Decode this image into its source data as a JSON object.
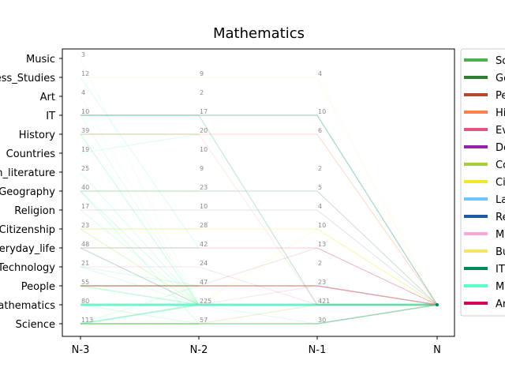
{
  "chart_data": {
    "type": "line",
    "title": "Mathematics",
    "x": [
      "N-3",
      "N-2",
      "N-1",
      "N"
    ],
    "y_categories": [
      "Science",
      "Mathematics",
      "People",
      "Technology",
      "Everyday_life",
      "Citizenship",
      "Religion",
      "Geography",
      "Foreign_literature",
      "Countries",
      "History",
      "IT",
      "Art",
      "Business_Studies",
      "Music"
    ],
    "counts": [
      {
        "column": "N-3",
        "values": {
          "Music": 3,
          "Business_Studies": 12,
          "Art": 4,
          "IT": 10,
          "History": 39,
          "Countries": 19,
          "Foreign_literature": 25,
          "Geography": 40,
          "Religion": 17,
          "Citizenship": 23,
          "Everyday_life": 48,
          "Technology": 21,
          "People": 55,
          "Mathematics": 80,
          "Science": 113
        }
      },
      {
        "column": "N-2",
        "values": {
          "Business_Studies": 9,
          "Art": 2,
          "IT": 17,
          "History": 20,
          "Countries": 10,
          "Foreign_literature": 9,
          "Geography": 23,
          "Religion": 10,
          "Citizenship": 28,
          "Everyday_life": 42,
          "Technology": 24,
          "People": 47,
          "Mathematics": 225,
          "Science": 57
        }
      },
      {
        "column": "N-1",
        "values": {
          "Business_Studies": 4,
          "IT": 10,
          "History": 6,
          "Foreign_literature": 2,
          "Geography": 5,
          "Religion": 4,
          "Citizenship": 10,
          "Everyday_life": 13,
          "Technology": 2,
          "People": 23,
          "Mathematics": 421,
          "Science": 30
        }
      }
    ],
    "target": {
      "column": "N",
      "category": "Mathematics"
    },
    "legend": {
      "placement": "outside-right",
      "entries": [
        {
          "label": "So",
          "color": "#4caf50"
        },
        {
          "label": "Ge",
          "color": "#2e7d32"
        },
        {
          "label": "Pe",
          "color": "#b5472c"
        },
        {
          "label": "Hi",
          "color": "#ff7f50"
        },
        {
          "label": "Ev",
          "color": "#e05584"
        },
        {
          "label": "De",
          "color": "#8e24aa"
        },
        {
          "label": "Co",
          "color": "#a4cd3c"
        },
        {
          "label": "Ci",
          "color": "#f5e62d"
        },
        {
          "label": "La",
          "color": "#6ec6ff"
        },
        {
          "label": "Re",
          "color": "#1e5aa8"
        },
        {
          "label": "M",
          "color": "#f7a8d8"
        },
        {
          "label": "Bu",
          "color": "#f7e36a"
        },
        {
          "label": "IT",
          "color": "#00875a"
        },
        {
          "label": "M",
          "color": "#5cffc8"
        },
        {
          "label": "Ar",
          "color": "#d6005f"
        }
      ]
    },
    "flows": [
      {
        "path": [
          "Science",
          "Mathematics"
        ],
        "color": "#7cf7b0",
        "w": 2,
        "o": 0.55
      },
      {
        "path": [
          "Science",
          "Science"
        ],
        "color": "#7cf7b0",
        "w": 1.5,
        "o": 0.45
      },
      {
        "path": [
          "Mathematics",
          "Mathematics"
        ],
        "color": "#5cffc8",
        "w": 2.5,
        "o": 0.85
      },
      {
        "path": [
          "People",
          "Mathematics"
        ],
        "color": "#7cf7b0",
        "w": 1.5,
        "o": 0.45
      },
      {
        "path": [
          "Everyday_life",
          "Everyday_life"
        ],
        "color": "#7cf7b0",
        "w": 1.2,
        "o": 0.35
      },
      {
        "path": [
          "Everyday_life",
          "Mathematics"
        ],
        "color": "#7cf7b0",
        "w": 1.2,
        "o": 0.35
      },
      {
        "path": [
          "History",
          "History"
        ],
        "color": "#7cf7b0",
        "w": 1.2,
        "o": 0.35
      },
      {
        "path": [
          "History",
          "Mathematics"
        ],
        "color": "#7cf7b0",
        "w": 1.2,
        "o": 0.35
      },
      {
        "path": [
          "Geography",
          "Geography"
        ],
        "color": "#7cf7b0",
        "w": 1,
        "o": 0.3
      },
      {
        "path": [
          "Geography",
          "Science"
        ],
        "color": "#7cf7b0",
        "w": 1,
        "o": 0.3
      },
      {
        "path": [
          "Citizenship",
          "Citizenship"
        ],
        "color": "#7cf7b0",
        "w": 1,
        "o": 0.3
      },
      {
        "path": [
          "Citizenship",
          "Mathematics"
        ],
        "color": "#7cf7b0",
        "w": 1,
        "o": 0.3
      },
      {
        "path": [
          "Technology",
          "People"
        ],
        "color": "#7cf7b0",
        "w": 1,
        "o": 0.3
      },
      {
        "path": [
          "Countries",
          "History"
        ],
        "color": "#7cf7b0",
        "w": 1,
        "o": 0.25
      },
      {
        "path": [
          "Foreign_literature",
          "Mathematics"
        ],
        "color": "#7cf7b0",
        "w": 1,
        "o": 0.25
      },
      {
        "path": [
          "Religion",
          "Mathematics"
        ],
        "color": "#7cf7b0",
        "w": 1,
        "o": 0.25
      },
      {
        "path": [
          "Business_Studies",
          "Everyday_life"
        ],
        "color": "#7cf7b0",
        "w": 1,
        "o": 0.25
      },
      {
        "path": [
          "IT",
          "Mathematics"
        ],
        "color": "#7cf7b0",
        "w": 1,
        "o": 0.2
      },
      {
        "path": [
          "Music",
          "Mathematics"
        ],
        "color": "#7cf7b0",
        "w": 0.8,
        "o": 0.15
      },
      {
        "path": [
          "Art",
          "Mathematics"
        ],
        "color": "#7cf7b0",
        "w": 0.8,
        "o": 0.15
      },
      {
        "path": [
          "People",
          "People"
        ],
        "color": "#7cf7b0",
        "w": 1.2,
        "o": 0.35
      },
      {
        "path": [
          "Technology",
          "Mathematics"
        ],
        "color": "#7cf7b0",
        "w": 1,
        "o": 0.25
      },
      {
        "path": [
          "Mathematics",
          "Science"
        ],
        "color": "#7cf7b0",
        "w": 1,
        "o": 0.3
      },
      {
        "path": [
          "Science",
          "People"
        ],
        "color": "#7cf7b0",
        "w": 1,
        "o": 0.25
      },
      {
        "path": [
          "Geography",
          "Mathematics"
        ],
        "color": "#7cf7b0",
        "w": 1,
        "o": 0.3
      },
      {
        "path": [
          "Mathematics",
          "Mathematics",
          "Mathematics",
          "Mathematics"
        ],
        "color": "#5cffc8",
        "w": 3,
        "o": 0.9
      },
      {
        "path": [
          "Science",
          "Science",
          "Science",
          "Mathematics"
        ],
        "color": "#4caf50",
        "w": 1.5,
        "o": 0.5
      },
      {
        "path": [
          "People",
          "People",
          "People",
          "Mathematics"
        ],
        "color": "#b5472c",
        "w": 1.5,
        "o": 0.5
      },
      {
        "path": [
          "History",
          "History",
          "History",
          "Mathematics"
        ],
        "color": "#ff7f50",
        "w": 1,
        "o": 0.3
      },
      {
        "path": [
          "Everyday_life",
          "Everyday_life",
          "Everyday_life",
          "Mathematics"
        ],
        "color": "#e05584",
        "w": 1,
        "o": 0.3
      },
      {
        "path": [
          "IT",
          "IT",
          "IT",
          "Mathematics"
        ],
        "color": "#00875a",
        "w": 1.2,
        "o": 0.35
      },
      {
        "path": [
          "IT",
          "IT",
          "Mathematics",
          "Mathematics"
        ],
        "color": "#00875a",
        "w": 1,
        "o": 0.25
      },
      {
        "path": [
          "Business_Studies",
          "Business_Studies",
          "Business_Studies",
          "Mathematics"
        ],
        "color": "#f7e36a",
        "w": 0.8,
        "o": 0.2
      },
      {
        "path": [
          "Citizenship",
          "Citizenship",
          "Citizenship",
          "Mathematics"
        ],
        "color": "#f5e62d",
        "w": 1,
        "o": 0.3
      },
      {
        "path": [
          "Geography",
          "Geography",
          "Geography",
          "Mathematics"
        ],
        "color": "#2e7d32",
        "w": 1,
        "o": 0.25
      },
      {
        "path": [
          "Religion",
          "Religion",
          "Religion",
          "Mathematics"
        ],
        "color": "#1e5aa8",
        "w": 0.8,
        "o": 0.2
      },
      {
        "path": [
          "Science",
          "Science",
          "Mathematics",
          "Mathematics"
        ],
        "color": "#a4cd3c",
        "w": 1,
        "o": 0.3
      },
      {
        "path": [
          "Mathematics",
          "Mathematics",
          "People",
          "Mathematics"
        ],
        "color": "#f7a8d8",
        "w": 1,
        "o": 0.35
      },
      {
        "path": [
          "Everyday_life",
          "Mathematics",
          "Mathematics",
          "Mathematics"
        ],
        "color": "#8e24aa",
        "w": 0.8,
        "o": 0.2
      },
      {
        "path": [
          "Science",
          "Mathematics",
          "Science",
          "Mathematics"
        ],
        "color": "#6ec6ff",
        "w": 0.8,
        "o": 0.2
      },
      {
        "path": [
          "Technology",
          "Technology",
          "Mathematics",
          "Mathematics"
        ],
        "color": "#d6005f",
        "w": 0.8,
        "o": 0.15
      },
      {
        "path": [
          "Citizenship",
          "Mathematics",
          "Citizenship",
          "Mathematics"
        ],
        "color": "#f5e62d",
        "w": 0.8,
        "o": 0.2
      },
      {
        "path": [
          "People",
          "People",
          "Everyday_life",
          "Mathematics"
        ],
        "color": "#b5472c",
        "w": 0.8,
        "o": 0.2
      },
      {
        "path": [
          "History",
          "History",
          "Mathematics",
          "Mathematics"
        ],
        "color": "#ff7f50",
        "w": 0.8,
        "o": 0.2
      }
    ]
  }
}
